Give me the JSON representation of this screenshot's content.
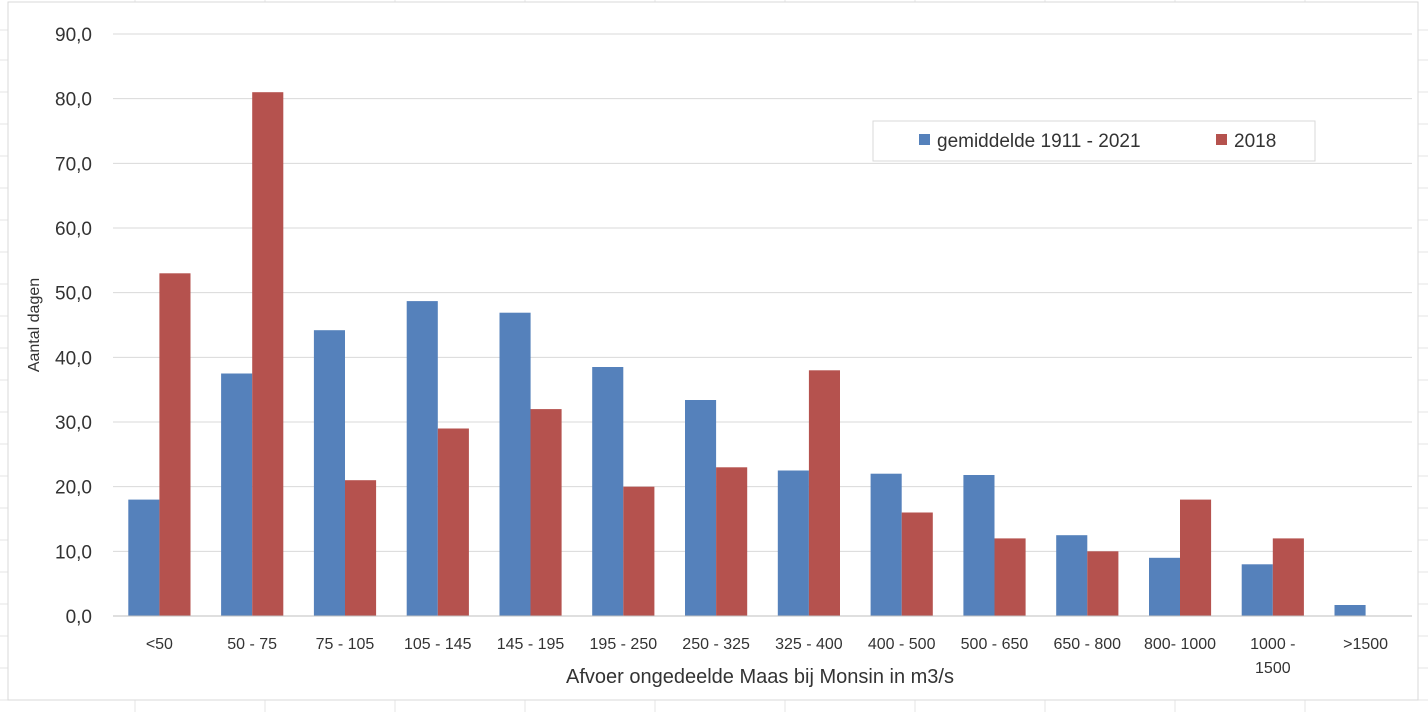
{
  "chart_data": {
    "type": "bar",
    "title": "",
    "xlabel": "Afvoer ongedeelde Maas bij Monsin in m3/s",
    "ylabel": "Aantal dagen",
    "ylim": [
      0,
      90
    ],
    "yticks": [
      "0,0",
      "10,0",
      "20,0",
      "30,0",
      "40,0",
      "50,0",
      "60,0",
      "70,0",
      "80,0",
      "90,0"
    ],
    "grid": true,
    "legend_position": "top-right",
    "categories": [
      [
        "<50"
      ],
      [
        "50 - 75"
      ],
      [
        "75 - 105"
      ],
      [
        "105 - 145"
      ],
      [
        "145 - 195"
      ],
      [
        "195 - 250"
      ],
      [
        "250 - 325"
      ],
      [
        "325 - 400"
      ],
      [
        "400 - 500"
      ],
      [
        "500 - 650"
      ],
      [
        "650 - 800"
      ],
      [
        "800- 1000"
      ],
      [
        "1000 -",
        "1500"
      ],
      [
        ">1500"
      ]
    ],
    "series": [
      {
        "name": "gemiddelde 1911 - 2021",
        "color": "#5581BB",
        "values": [
          18.0,
          37.5,
          44.2,
          48.7,
          46.9,
          38.5,
          33.4,
          22.5,
          22.0,
          21.8,
          12.5,
          9.0,
          8.0,
          1.7
        ]
      },
      {
        "name": "2018",
        "color": "#B5524E",
        "values": [
          53.0,
          81.0,
          21.0,
          29.0,
          32.0,
          20.0,
          23.0,
          38.0,
          16.0,
          12.0,
          10.0,
          18.0,
          12.0,
          0
        ]
      }
    ]
  }
}
